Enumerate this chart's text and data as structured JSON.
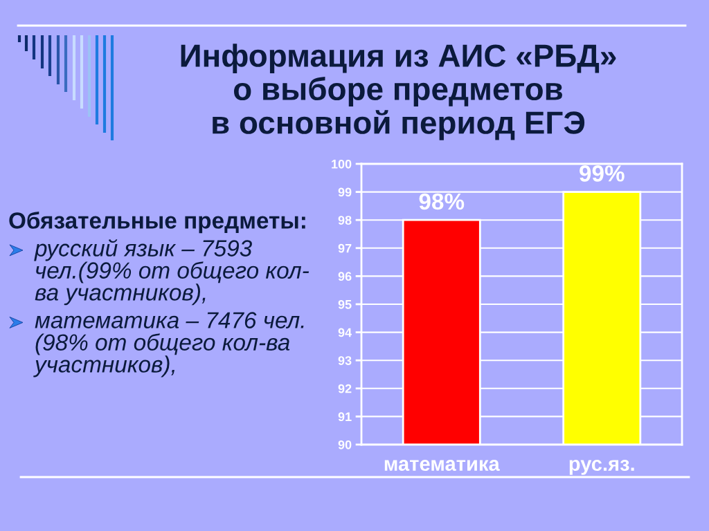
{
  "chart_data": {
    "type": "bar",
    "title": "Информация из АИС «РБД»\nо выборе предметов\nв основной период ЕГЭ",
    "categories": [
      "математика",
      "рус.яз."
    ],
    "values": [
      98,
      99
    ],
    "colors": [
      "#ff0000",
      "#ffff00"
    ],
    "value_labels": [
      "98%",
      "99%"
    ],
    "ylim": [
      90,
      100
    ],
    "yticks": [
      90,
      91,
      92,
      93,
      94,
      95,
      96,
      97,
      98,
      99,
      100
    ],
    "grid": "y",
    "annotations": [
      "Обязательные предметы:",
      "русский язык – 7593\nчел.(99% от общего кол-\nва участников),",
      "математика – 7476 чел.\n(98% от общего кол-ва\nучастников),"
    ]
  }
}
